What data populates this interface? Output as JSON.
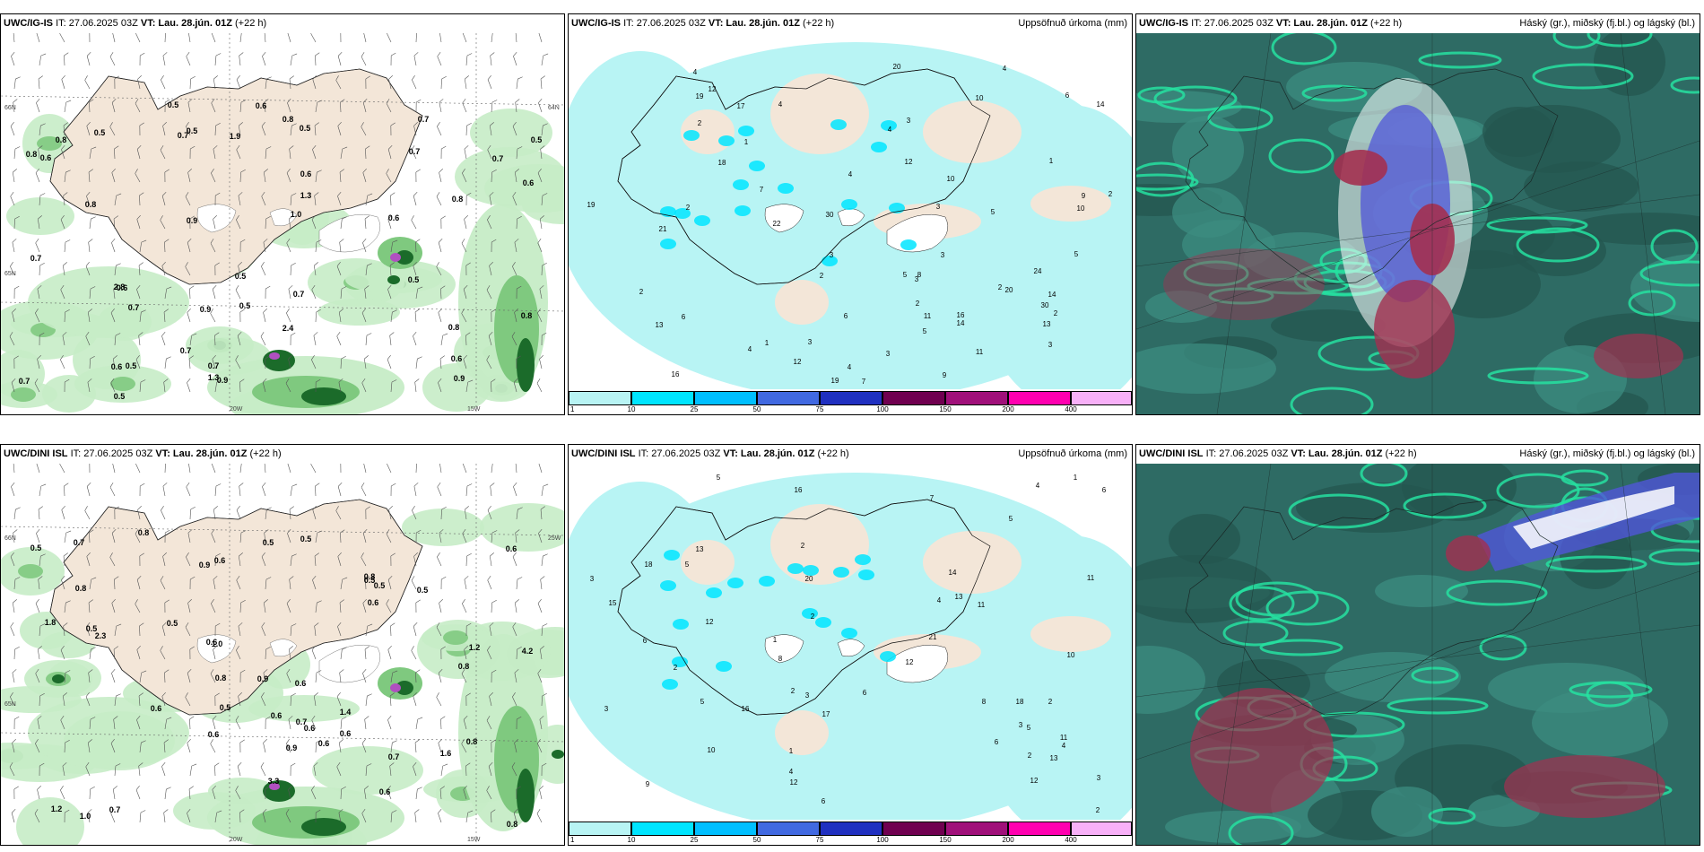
{
  "panels": [
    {
      "model": "UWC/IG-IS",
      "it": "IT: 27.06.2025 03Z",
      "vt": "VT: Lau. 28.jún. 01Z",
      "lead": "(+22 h)",
      "right": "",
      "labels": [
        "0.5",
        "0.8",
        "0.7",
        "0.5",
        "0.6",
        "0.5",
        "0.6",
        "0.6",
        "0.5",
        "0.7",
        "0.7",
        "0.6",
        "0.6",
        "0.7",
        "0.6",
        "0.6",
        "0.9",
        "0.7",
        "0.8",
        "0.9",
        "0.7",
        "0.8",
        "0.8",
        "0.7",
        "0.5",
        "0.5",
        "0.7",
        "0.5",
        "0.5",
        "0.7",
        "1.0",
        "0.7",
        "0.5",
        "0.8",
        "0.5",
        "0.8",
        "0.9",
        "2.4",
        "1.9",
        "0.8",
        "1.3",
        "2.8",
        "1.3",
        "0.9",
        "0.6"
      ],
      "coords": [
        "66N",
        "65N",
        "64N",
        "20W",
        "15W"
      ]
    },
    {
      "model": "UWC/IG-IS",
      "it": "IT: 27.06.2025 03Z",
      "vt": "VT: Lau. 28.jún. 01Z",
      "lead": "(+22 h)",
      "right": "Uppsöfnuð úrkoma (mm)",
      "labels": [
        "11",
        "2",
        "1",
        "3",
        "3",
        "2",
        "1",
        "4",
        "7",
        "12",
        "18",
        "16",
        "10",
        "20",
        "30",
        "30",
        "21",
        "11",
        "6",
        "12",
        "22",
        "13",
        "19",
        "3",
        "4",
        "12",
        "14",
        "17",
        "13",
        "19",
        "14",
        "10",
        "16",
        "5",
        "4",
        "10",
        "19",
        "9",
        "4",
        "2",
        "4",
        "14",
        "2",
        "3",
        "6",
        "8",
        "9",
        "2",
        "5",
        "3",
        "2",
        "1",
        "3",
        "20",
        "6",
        "7",
        "4",
        "2",
        "24",
        "3",
        "4",
        "5",
        "3",
        "5",
        "2"
      ],
      "colorbar": [
        "1",
        "10",
        "25",
        "50",
        "75",
        "100",
        "150",
        "200",
        "400"
      ]
    },
    {
      "model": "UWC/IG-IS",
      "it": "IT: 27.06.2025 03Z",
      "vt": "VT: Lau. 28.jún. 01Z",
      "lead": "(+22 h)",
      "right": "Háský (gr.), miðský (fj.bl.) og lágský (bl.)"
    },
    {
      "model": "UWC/DINI ISL",
      "it": "IT: 27.06.2025 03Z",
      "vt": "VT: Lau. 28.jún. 01Z",
      "lead": "(+22 h)",
      "right": "",
      "labels": [
        "0.5",
        "0.9",
        "0.6",
        "0.8",
        "1.0",
        "0.6",
        "0.6",
        "0.5",
        "0.8",
        "0.6",
        "0.8",
        "1.2",
        "0.6",
        "1.8",
        "0.6",
        "0.5",
        "0.8",
        "0.6",
        "1.0",
        "0.5",
        "0.6",
        "0.5",
        "0.8",
        "0.7",
        "0.6",
        "0.5",
        "0.6",
        "0.5",
        "0.9",
        "0.6",
        "1.2",
        "0.7",
        "0.5",
        "0.8",
        "0.7",
        "4.2",
        "2.3",
        "3.3",
        "1.6",
        "0.9",
        "1.4",
        "0.6",
        "0.7",
        "0.8",
        "0.5"
      ],
      "coords": [
        "66N",
        "65N",
        "25W",
        "20W",
        "15W"
      ]
    },
    {
      "model": "UWC/DINI ISL",
      "it": "IT: 27.06.2025 03Z",
      "vt": "VT: Lau. 28.jún. 01Z",
      "lead": "(+22 h)",
      "right": "Uppsöfnuð úrkoma (mm)",
      "labels": [
        "2",
        "3",
        "5",
        "6",
        "2",
        "1",
        "6",
        "2",
        "8",
        "12",
        "14",
        "18",
        "10",
        "21",
        "11",
        "6",
        "12",
        "5",
        "13",
        "13",
        "16",
        "12",
        "18",
        "17",
        "13",
        "11",
        "15",
        "9",
        "3",
        "16",
        "12",
        "11",
        "4",
        "2",
        "5",
        "8",
        "10",
        "3",
        "20",
        "2",
        "4",
        "5",
        "3",
        "6",
        "4",
        "7",
        "2",
        "1",
        "5",
        "3",
        "2",
        "6",
        "4",
        "1"
      ],
      "colorbar": [
        "1",
        "10",
        "25",
        "50",
        "75",
        "100",
        "150",
        "200",
        "400"
      ]
    },
    {
      "model": "UWC/DINI ISL",
      "it": "IT: 27.06.2025 03Z",
      "vt": "VT: Lau. 28.jún. 01Z",
      "lead": "(+22 h)",
      "right": "Háský (gr.), miðský (fj.bl.) og lágský (bl.)"
    }
  ],
  "colors": {
    "land": "#f3e6d8",
    "precip_light": "#c6ecc6",
    "precip_mid": "#7fc97f",
    "precip_dark": "#1b6b2a",
    "accum_base": "#b8f4f4",
    "accum_cyan": "#00e5ff",
    "cloud_base": "#2e6b64",
    "cloud_bright": "#26e0a0",
    "cloud_red": "#a33050",
    "cloud_blue": "#5056d8"
  },
  "colorbar_colors": [
    "#b8f4f4",
    "#00e5ff",
    "#00bfff",
    "#4169e1",
    "#2030c0",
    "#700050",
    "#a0107a",
    "#ff00b0",
    "#f8b0f8"
  ]
}
